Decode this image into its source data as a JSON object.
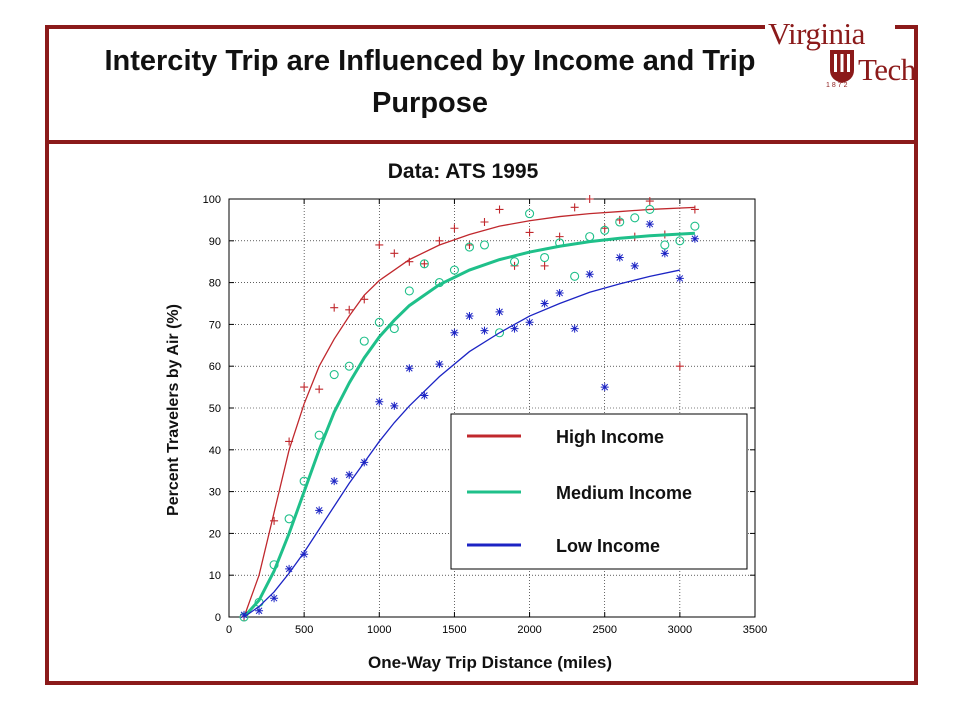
{
  "slide": {
    "title": "Intercity Trip are Influenced by Income and Trip Purpose",
    "logo": {
      "line1": "Virginia",
      "line2": "Tech",
      "year": "1872"
    }
  },
  "chart_data": {
    "type": "scatter",
    "title": "Data: ATS 1995",
    "xlabel": "One-Way Trip Distance (miles)",
    "ylabel": "Percent Travelers by Air (%)",
    "xlim": [
      0,
      3500
    ],
    "ylim": [
      0,
      100
    ],
    "xticks": [
      0,
      500,
      1000,
      1500,
      2000,
      2500,
      3000,
      3500
    ],
    "yticks": [
      0,
      10,
      20,
      30,
      40,
      50,
      60,
      70,
      80,
      90,
      100
    ],
    "grid": true,
    "legend_position": "lower-right",
    "series": [
      {
        "name": "High Income",
        "color": "#c0282d",
        "marker": "plus",
        "points": [
          [
            100,
            0
          ],
          [
            300,
            23
          ],
          [
            400,
            42
          ],
          [
            500,
            55
          ],
          [
            600,
            54.5
          ],
          [
            700,
            74
          ],
          [
            800,
            73.5
          ],
          [
            900,
            76
          ],
          [
            1000,
            89
          ],
          [
            1100,
            87
          ],
          [
            1200,
            85
          ],
          [
            1300,
            84.5
          ],
          [
            1400,
            90
          ],
          [
            1500,
            93
          ],
          [
            1600,
            89
          ],
          [
            1700,
            94.5
          ],
          [
            1800,
            97.5
          ],
          [
            1900,
            84
          ],
          [
            2000,
            92
          ],
          [
            2100,
            84
          ],
          [
            2200,
            91
          ],
          [
            2300,
            98
          ],
          [
            2400,
            100
          ],
          [
            2500,
            93
          ],
          [
            2600,
            95
          ],
          [
            2700,
            91
          ],
          [
            2800,
            99.5
          ],
          [
            2900,
            91.5
          ],
          [
            3000,
            60
          ],
          [
            3100,
            97.5
          ]
        ],
        "fit": [
          [
            100,
            0
          ],
          [
            200,
            10
          ],
          [
            300,
            25
          ],
          [
            400,
            40
          ],
          [
            500,
            51
          ],
          [
            600,
            60
          ],
          [
            700,
            66.5
          ],
          [
            800,
            72
          ],
          [
            900,
            77
          ],
          [
            1000,
            80.5
          ],
          [
            1200,
            85.5
          ],
          [
            1400,
            89
          ],
          [
            1600,
            91.5
          ],
          [
            1800,
            93.5
          ],
          [
            2000,
            94.8
          ],
          [
            2200,
            95.8
          ],
          [
            2400,
            96.5
          ],
          [
            2600,
            97
          ],
          [
            2800,
            97.5
          ],
          [
            3100,
            98
          ]
        ]
      },
      {
        "name": "Medium Income",
        "color": "#1fc08a",
        "marker": "circle",
        "points": [
          [
            100,
            0
          ],
          [
            200,
            3.5
          ],
          [
            300,
            12.5
          ],
          [
            400,
            23.5
          ],
          [
            500,
            32.5
          ],
          [
            600,
            43.5
          ],
          [
            700,
            58
          ],
          [
            800,
            60
          ],
          [
            900,
            66
          ],
          [
            1000,
            70.5
          ],
          [
            1100,
            69
          ],
          [
            1200,
            78
          ],
          [
            1300,
            84.5
          ],
          [
            1400,
            80
          ],
          [
            1500,
            83
          ],
          [
            1600,
            88.5
          ],
          [
            1700,
            89
          ],
          [
            1800,
            68
          ],
          [
            1900,
            85
          ],
          [
            2000,
            96.5
          ],
          [
            2100,
            86
          ],
          [
            2200,
            89.5
          ],
          [
            2300,
            81.5
          ],
          [
            2400,
            91
          ],
          [
            2500,
            92.5
          ],
          [
            2600,
            94.5
          ],
          [
            2700,
            95.5
          ],
          [
            2800,
            97.5
          ],
          [
            2900,
            89
          ],
          [
            3000,
            90
          ],
          [
            3100,
            93.5
          ]
        ],
        "fit": [
          [
            100,
            0
          ],
          [
            200,
            4
          ],
          [
            300,
            11
          ],
          [
            400,
            20
          ],
          [
            500,
            30
          ],
          [
            600,
            40
          ],
          [
            700,
            49
          ],
          [
            800,
            56
          ],
          [
            900,
            62
          ],
          [
            1000,
            67
          ],
          [
            1100,
            71
          ],
          [
            1200,
            74.5
          ],
          [
            1400,
            79.5
          ],
          [
            1600,
            83
          ],
          [
            1800,
            85.5
          ],
          [
            2000,
            87.3
          ],
          [
            2200,
            88.7
          ],
          [
            2400,
            89.8
          ],
          [
            2600,
            90.6
          ],
          [
            2800,
            91.2
          ],
          [
            3100,
            91.8
          ]
        ]
      },
      {
        "name": "Low Income",
        "color": "#1c24c4",
        "marker": "asterisk",
        "points": [
          [
            100,
            0.5
          ],
          [
            200,
            1.5
          ],
          [
            300,
            4.5
          ],
          [
            400,
            11.5
          ],
          [
            500,
            15
          ],
          [
            600,
            25.5
          ],
          [
            700,
            32.5
          ],
          [
            800,
            34
          ],
          [
            900,
            37
          ],
          [
            1000,
            51.5
          ],
          [
            1100,
            50.5
          ],
          [
            1200,
            59.5
          ],
          [
            1300,
            53
          ],
          [
            1400,
            60.5
          ],
          [
            1500,
            68
          ],
          [
            1600,
            72
          ],
          [
            1700,
            68.5
          ],
          [
            1800,
            73
          ],
          [
            1900,
            69
          ],
          [
            2000,
            70.5
          ],
          [
            2100,
            75
          ],
          [
            2200,
            77.5
          ],
          [
            2300,
            69
          ],
          [
            2400,
            82
          ],
          [
            2500,
            55
          ],
          [
            2600,
            86
          ],
          [
            2700,
            84
          ],
          [
            2800,
            94
          ],
          [
            2900,
            87
          ],
          [
            3000,
            81
          ],
          [
            3100,
            90.5
          ]
        ],
        "fit": [
          [
            100,
            0
          ],
          [
            200,
            2.5
          ],
          [
            300,
            6
          ],
          [
            400,
            10.5
          ],
          [
            500,
            15.5
          ],
          [
            600,
            21
          ],
          [
            700,
            26.5
          ],
          [
            800,
            32
          ],
          [
            900,
            37
          ],
          [
            1000,
            42
          ],
          [
            1100,
            46.5
          ],
          [
            1200,
            50.5
          ],
          [
            1400,
            57.5
          ],
          [
            1600,
            63.5
          ],
          [
            1800,
            68
          ],
          [
            2000,
            72
          ],
          [
            2200,
            75
          ],
          [
            2400,
            77.7
          ],
          [
            2600,
            79.7
          ],
          [
            2800,
            81.5
          ],
          [
            3000,
            83
          ]
        ]
      }
    ]
  }
}
